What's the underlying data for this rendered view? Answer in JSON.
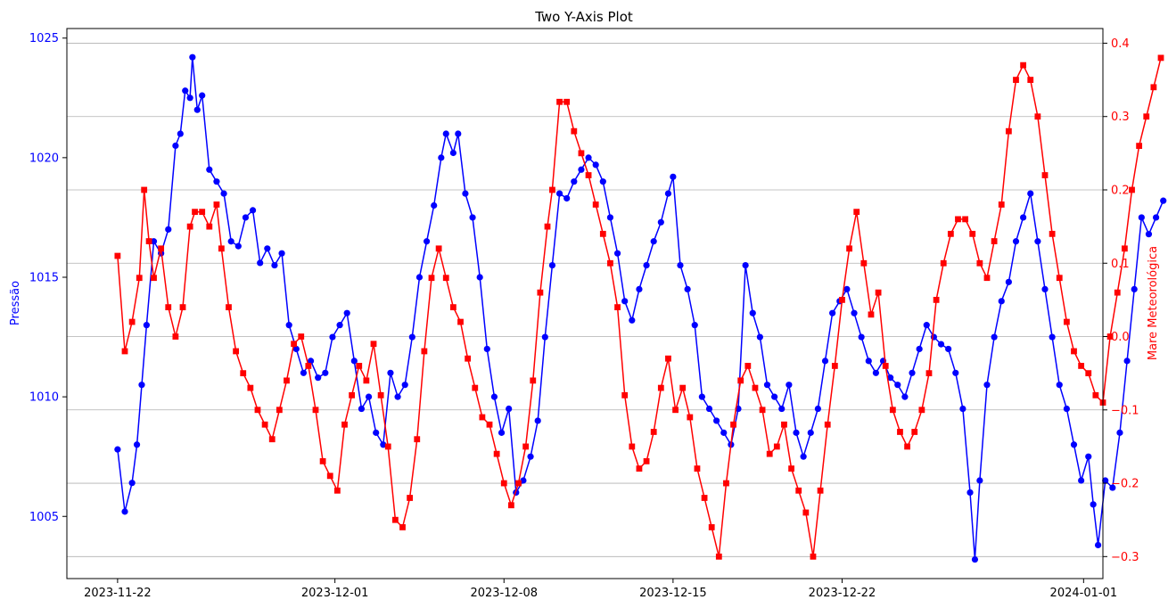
{
  "chart_data": {
    "type": "line",
    "title": "Two Y-Axis Plot",
    "ylabel_left": "Pressão",
    "ylabel_right": "Mare Meteorológica",
    "left_color": "#0000ff",
    "right_color": "#ff0000",
    "x_ticks": [
      "2023-11-22",
      "2023-12-01",
      "2023-12-08",
      "2023-12-15",
      "2023-12-22",
      "2024-01-01"
    ],
    "x_tick_days": [
      0,
      9,
      16,
      23,
      30,
      40
    ],
    "xlim_days": [
      -2.1,
      40.8
    ],
    "y_left_ticks": [
      1005,
      1010,
      1015,
      1020,
      1025
    ],
    "y_left_lim": [
      1002.4,
      1025.4
    ],
    "y_right_ticks": [
      -0.3,
      -0.2,
      -0.1,
      0.0,
      0.1,
      0.2,
      0.3,
      0.4
    ],
    "y_right_lim": [
      -0.33,
      0.42
    ],
    "grid": "horizontal, right axis",
    "series": [
      {
        "name": "Pressão",
        "axis": "left",
        "marker": "circle",
        "color": "#0000ff",
        "points": [
          [
            0.0,
            1007.8
          ],
          [
            0.3,
            1005.2
          ],
          [
            0.6,
            1006.4
          ],
          [
            0.8,
            1008.0
          ],
          [
            1.0,
            1010.5
          ],
          [
            1.2,
            1013.0
          ],
          [
            1.5,
            1016.5
          ],
          [
            1.8,
            1016.0
          ],
          [
            2.1,
            1017.0
          ],
          [
            2.4,
            1020.5
          ],
          [
            2.6,
            1021.0
          ],
          [
            2.8,
            1022.8
          ],
          [
            3.0,
            1022.5
          ],
          [
            3.1,
            1024.2
          ],
          [
            3.3,
            1022.0
          ],
          [
            3.5,
            1022.6
          ],
          [
            3.8,
            1019.5
          ],
          [
            4.1,
            1019.0
          ],
          [
            4.4,
            1018.5
          ],
          [
            4.7,
            1016.5
          ],
          [
            5.0,
            1016.3
          ],
          [
            5.3,
            1017.5
          ],
          [
            5.6,
            1017.8
          ],
          [
            5.9,
            1015.6
          ],
          [
            6.2,
            1016.2
          ],
          [
            6.5,
            1015.5
          ],
          [
            6.8,
            1016.0
          ],
          [
            7.1,
            1013.0
          ],
          [
            7.4,
            1012.0
          ],
          [
            7.7,
            1011.0
          ],
          [
            8.0,
            1011.5
          ],
          [
            8.3,
            1010.8
          ],
          [
            8.6,
            1011.0
          ],
          [
            8.9,
            1012.5
          ],
          [
            9.2,
            1013.0
          ],
          [
            9.5,
            1013.5
          ],
          [
            9.8,
            1011.5
          ],
          [
            10.1,
            1009.5
          ],
          [
            10.4,
            1010.0
          ],
          [
            10.7,
            1008.5
          ],
          [
            11.0,
            1008.0
          ],
          [
            11.3,
            1011.0
          ],
          [
            11.6,
            1010.0
          ],
          [
            11.9,
            1010.5
          ],
          [
            12.2,
            1012.5
          ],
          [
            12.5,
            1015.0
          ],
          [
            12.8,
            1016.5
          ],
          [
            13.1,
            1018.0
          ],
          [
            13.4,
            1020.0
          ],
          [
            13.6,
            1021.0
          ],
          [
            13.9,
            1020.2
          ],
          [
            14.1,
            1021.0
          ],
          [
            14.4,
            1018.5
          ],
          [
            14.7,
            1017.5
          ],
          [
            15.0,
            1015.0
          ],
          [
            15.3,
            1012.0
          ],
          [
            15.6,
            1010.0
          ],
          [
            15.9,
            1008.5
          ],
          [
            16.2,
            1009.5
          ],
          [
            16.5,
            1006.0
          ],
          [
            16.8,
            1006.5
          ],
          [
            17.1,
            1007.5
          ],
          [
            17.4,
            1009.0
          ],
          [
            17.7,
            1012.5
          ],
          [
            18.0,
            1015.5
          ],
          [
            18.3,
            1018.5
          ],
          [
            18.6,
            1018.3
          ],
          [
            18.9,
            1019.0
          ],
          [
            19.2,
            1019.5
          ],
          [
            19.5,
            1020.0
          ],
          [
            19.8,
            1019.7
          ],
          [
            20.1,
            1019.0
          ],
          [
            20.4,
            1017.5
          ],
          [
            20.7,
            1016.0
          ],
          [
            21.0,
            1014.0
          ],
          [
            21.3,
            1013.2
          ],
          [
            21.6,
            1014.5
          ],
          [
            21.9,
            1015.5
          ],
          [
            22.2,
            1016.5
          ],
          [
            22.5,
            1017.3
          ],
          [
            22.8,
            1018.5
          ],
          [
            23.0,
            1019.2
          ],
          [
            23.3,
            1015.5
          ],
          [
            23.6,
            1014.5
          ],
          [
            23.9,
            1013.0
          ],
          [
            24.2,
            1010.0
          ],
          [
            24.5,
            1009.5
          ],
          [
            24.8,
            1009.0
          ],
          [
            25.1,
            1008.5
          ],
          [
            25.4,
            1008.0
          ],
          [
            25.7,
            1009.5
          ],
          [
            26.0,
            1015.5
          ],
          [
            26.3,
            1013.5
          ],
          [
            26.6,
            1012.5
          ],
          [
            26.9,
            1010.5
          ],
          [
            27.2,
            1010.0
          ],
          [
            27.5,
            1009.5
          ],
          [
            27.8,
            1010.5
          ],
          [
            28.1,
            1008.5
          ],
          [
            28.4,
            1007.5
          ],
          [
            28.7,
            1008.5
          ],
          [
            29.0,
            1009.5
          ],
          [
            29.3,
            1011.5
          ],
          [
            29.6,
            1013.5
          ],
          [
            29.9,
            1014.0
          ],
          [
            30.2,
            1014.5
          ],
          [
            30.5,
            1013.5
          ],
          [
            30.8,
            1012.5
          ],
          [
            31.1,
            1011.5
          ],
          [
            31.4,
            1011.0
          ],
          [
            31.7,
            1011.5
          ],
          [
            32.0,
            1010.8
          ],
          [
            32.3,
            1010.5
          ],
          [
            32.6,
            1010.0
          ],
          [
            32.9,
            1011.0
          ],
          [
            33.2,
            1012.0
          ],
          [
            33.5,
            1013.0
          ],
          [
            33.8,
            1012.5
          ],
          [
            34.1,
            1012.2
          ],
          [
            34.4,
            1012.0
          ],
          [
            34.7,
            1011.0
          ],
          [
            35.0,
            1009.5
          ],
          [
            35.3,
            1006.0
          ],
          [
            35.5,
            1003.2
          ],
          [
            35.7,
            1006.5
          ],
          [
            36.0,
            1010.5
          ],
          [
            36.3,
            1012.5
          ],
          [
            36.6,
            1014.0
          ],
          [
            36.9,
            1014.8
          ],
          [
            37.2,
            1016.5
          ],
          [
            37.5,
            1017.5
          ],
          [
            37.8,
            1018.5
          ],
          [
            38.1,
            1016.5
          ],
          [
            38.4,
            1014.5
          ],
          [
            38.7,
            1012.5
          ],
          [
            39.0,
            1010.5
          ],
          [
            39.3,
            1009.5
          ],
          [
            39.6,
            1008.0
          ],
          [
            39.9,
            1006.5
          ],
          [
            40.2,
            1007.5
          ],
          [
            40.4,
            1005.5
          ],
          [
            40.6,
            1003.8
          ],
          [
            40.9,
            1006.5
          ],
          [
            41.2,
            1006.2
          ],
          [
            41.5,
            1008.5
          ],
          [
            41.8,
            1011.5
          ],
          [
            42.1,
            1014.5
          ],
          [
            42.4,
            1017.5
          ],
          [
            42.7,
            1016.8
          ],
          [
            43.0,
            1017.5
          ],
          [
            43.3,
            1018.2
          ]
        ]
      },
      {
        "name": "Mare Meteorológica",
        "axis": "right",
        "marker": "square",
        "color": "#ff0000",
        "points": [
          [
            0.0,
            0.11
          ],
          [
            0.3,
            -0.02
          ],
          [
            0.6,
            0.02
          ],
          [
            0.9,
            0.08
          ],
          [
            1.1,
            0.2
          ],
          [
            1.3,
            0.13
          ],
          [
            1.5,
            0.08
          ],
          [
            1.8,
            0.12
          ],
          [
            2.1,
            0.04
          ],
          [
            2.4,
            0.0
          ],
          [
            2.7,
            0.04
          ],
          [
            3.0,
            0.15
          ],
          [
            3.2,
            0.17
          ],
          [
            3.5,
            0.17
          ],
          [
            3.8,
            0.15
          ],
          [
            4.1,
            0.18
          ],
          [
            4.3,
            0.12
          ],
          [
            4.6,
            0.04
          ],
          [
            4.9,
            -0.02
          ],
          [
            5.2,
            -0.05
          ],
          [
            5.5,
            -0.07
          ],
          [
            5.8,
            -0.1
          ],
          [
            6.1,
            -0.12
          ],
          [
            6.4,
            -0.14
          ],
          [
            6.7,
            -0.1
          ],
          [
            7.0,
            -0.06
          ],
          [
            7.3,
            -0.01
          ],
          [
            7.6,
            0.0
          ],
          [
            7.9,
            -0.04
          ],
          [
            8.2,
            -0.1
          ],
          [
            8.5,
            -0.17
          ],
          [
            8.8,
            -0.19
          ],
          [
            9.1,
            -0.21
          ],
          [
            9.4,
            -0.12
          ],
          [
            9.7,
            -0.08
          ],
          [
            10.0,
            -0.04
          ],
          [
            10.3,
            -0.06
          ],
          [
            10.6,
            -0.01
          ],
          [
            10.9,
            -0.08
          ],
          [
            11.2,
            -0.15
          ],
          [
            11.5,
            -0.25
          ],
          [
            11.8,
            -0.26
          ],
          [
            12.1,
            -0.22
          ],
          [
            12.4,
            -0.14
          ],
          [
            12.7,
            -0.02
          ],
          [
            13.0,
            0.08
          ],
          [
            13.3,
            0.12
          ],
          [
            13.6,
            0.08
          ],
          [
            13.9,
            0.04
          ],
          [
            14.2,
            0.02
          ],
          [
            14.5,
            -0.03
          ],
          [
            14.8,
            -0.07
          ],
          [
            15.1,
            -0.11
          ],
          [
            15.4,
            -0.12
          ],
          [
            15.7,
            -0.16
          ],
          [
            16.0,
            -0.2
          ],
          [
            16.3,
            -0.23
          ],
          [
            16.6,
            -0.2
          ],
          [
            16.9,
            -0.15
          ],
          [
            17.2,
            -0.06
          ],
          [
            17.5,
            0.06
          ],
          [
            17.8,
            0.15
          ],
          [
            18.0,
            0.2
          ],
          [
            18.3,
            0.32
          ],
          [
            18.6,
            0.32
          ],
          [
            18.9,
            0.28
          ],
          [
            19.2,
            0.25
          ],
          [
            19.5,
            0.22
          ],
          [
            19.8,
            0.18
          ],
          [
            20.1,
            0.14
          ],
          [
            20.4,
            0.1
          ],
          [
            20.7,
            0.04
          ],
          [
            21.0,
            -0.08
          ],
          [
            21.3,
            -0.15
          ],
          [
            21.6,
            -0.18
          ],
          [
            21.9,
            -0.17
          ],
          [
            22.2,
            -0.13
          ],
          [
            22.5,
            -0.07
          ],
          [
            22.8,
            -0.03
          ],
          [
            23.1,
            -0.1
          ],
          [
            23.4,
            -0.07
          ],
          [
            23.7,
            -0.11
          ],
          [
            24.0,
            -0.18
          ],
          [
            24.3,
            -0.22
          ],
          [
            24.6,
            -0.26
          ],
          [
            24.9,
            -0.3
          ],
          [
            25.2,
            -0.2
          ],
          [
            25.5,
            -0.12
          ],
          [
            25.8,
            -0.06
          ],
          [
            26.1,
            -0.04
          ],
          [
            26.4,
            -0.07
          ],
          [
            26.7,
            -0.1
          ],
          [
            27.0,
            -0.16
          ],
          [
            27.3,
            -0.15
          ],
          [
            27.6,
            -0.12
          ],
          [
            27.9,
            -0.18
          ],
          [
            28.2,
            -0.21
          ],
          [
            28.5,
            -0.24
          ],
          [
            28.8,
            -0.3
          ],
          [
            29.1,
            -0.21
          ],
          [
            29.4,
            -0.12
          ],
          [
            29.7,
            -0.04
          ],
          [
            30.0,
            0.05
          ],
          [
            30.3,
            0.12
          ],
          [
            30.6,
            0.17
          ],
          [
            30.9,
            0.1
          ],
          [
            31.2,
            0.03
          ],
          [
            31.5,
            0.06
          ],
          [
            31.8,
            -0.04
          ],
          [
            32.1,
            -0.1
          ],
          [
            32.4,
            -0.13
          ],
          [
            32.7,
            -0.15
          ],
          [
            33.0,
            -0.13
          ],
          [
            33.3,
            -0.1
          ],
          [
            33.6,
            -0.05
          ],
          [
            33.9,
            0.05
          ],
          [
            34.2,
            0.1
          ],
          [
            34.5,
            0.14
          ],
          [
            34.8,
            0.16
          ],
          [
            35.1,
            0.16
          ],
          [
            35.4,
            0.14
          ],
          [
            35.7,
            0.1
          ],
          [
            36.0,
            0.08
          ],
          [
            36.3,
            0.13
          ],
          [
            36.6,
            0.18
          ],
          [
            36.9,
            0.28
          ],
          [
            37.2,
            0.35
          ],
          [
            37.5,
            0.37
          ],
          [
            37.8,
            0.35
          ],
          [
            38.1,
            0.3
          ],
          [
            38.4,
            0.22
          ],
          [
            38.7,
            0.14
          ],
          [
            39.0,
            0.08
          ],
          [
            39.3,
            0.02
          ],
          [
            39.6,
            -0.02
          ],
          [
            39.9,
            -0.04
          ],
          [
            40.2,
            -0.05
          ],
          [
            40.5,
            -0.08
          ],
          [
            40.8,
            -0.09
          ],
          [
            41.1,
            0.0
          ],
          [
            41.4,
            0.06
          ],
          [
            41.7,
            0.12
          ],
          [
            42.0,
            0.2
          ],
          [
            42.3,
            0.26
          ],
          [
            42.6,
            0.3
          ],
          [
            42.9,
            0.34
          ],
          [
            43.2,
            0.38
          ]
        ]
      }
    ]
  }
}
